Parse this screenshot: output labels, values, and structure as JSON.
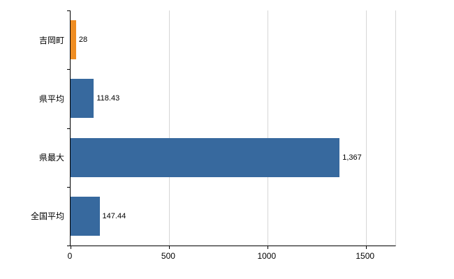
{
  "chart_data": {
    "type": "bar",
    "orientation": "horizontal",
    "title": "",
    "xlabel": "",
    "ylabel": "",
    "categories": [
      "吉岡町",
      "県平均",
      "県最大",
      "全国平均"
    ],
    "values": [
      28,
      118.43,
      1367,
      147.44
    ],
    "value_labels": [
      "28",
      "118.43",
      "1,367",
      "147.44"
    ],
    "bar_colors": [
      "#ef8d22",
      "#37699e",
      "#37699e",
      "#37699e"
    ],
    "x_ticks": [
      0,
      500,
      1000,
      1500
    ],
    "x_tick_labels": [
      "0",
      "500",
      "1000",
      "1500"
    ],
    "xlim": [
      0,
      1650
    ],
    "grid": true,
    "legend": "none"
  },
  "colors": {
    "background": "#ffffff",
    "bar_blue": "#37699e",
    "bar_orange": "#ef8d22",
    "gridline": "#d6d6d6",
    "axis": "#000000",
    "text": "#000000"
  }
}
